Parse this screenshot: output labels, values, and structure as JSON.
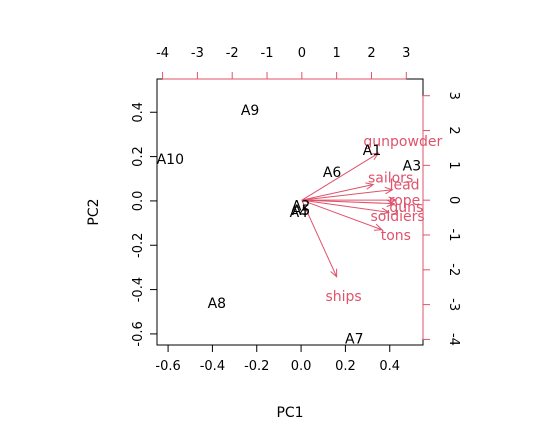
{
  "chart_data": {
    "type": "scatter",
    "title": "",
    "xlabel": "PC1",
    "ylabel": "PC2",
    "xlim": [
      -0.65,
      0.55
    ],
    "ylim": [
      -0.65,
      0.55
    ],
    "x_ticks": [
      -0.6,
      -0.4,
      -0.2,
      0.0,
      0.2,
      0.4
    ],
    "y_ticks": [
      -0.6,
      -0.4,
      -0.2,
      0.0,
      0.2,
      0.4
    ],
    "secondary_xlim": [
      -4.16,
      3.48
    ],
    "secondary_ylim": [
      -4.16,
      3.48
    ],
    "secondary_x_ticks": [
      -4,
      -3,
      -2,
      -1,
      0,
      1,
      2,
      3
    ],
    "secondary_y_ticks": [
      -4,
      -3,
      -2,
      -1,
      0,
      1,
      2,
      3
    ],
    "colors": {
      "observations": "#000000",
      "variables": "#DF536B"
    },
    "observations": [
      {
        "label": "A1",
        "x": 0.32,
        "y": 0.23
      },
      {
        "label": "A3",
        "x": 0.5,
        "y": 0.16
      },
      {
        "label": "A4",
        "x": -0.01,
        "y": -0.05
      },
      {
        "label": "A5",
        "x": 0.0,
        "y": -0.04
      },
      {
        "label": "A6",
        "x": 0.14,
        "y": 0.13
      },
      {
        "label": "A7",
        "x": 0.24,
        "y": -0.62
      },
      {
        "label": "A9",
        "x": -0.23,
        "y": 0.41
      },
      {
        "label": "A10",
        "x": -0.59,
        "y": 0.19
      },
      {
        "label": "A8",
        "x": -0.38,
        "y": -0.46
      },
      {
        "label": "A2",
        "x": 0.0,
        "y": -0.02
      }
    ],
    "variables": [
      {
        "label": "gunpowder",
        "x": 2.2,
        "y": 1.35,
        "label_x": 2.9,
        "label_y": 1.7
      },
      {
        "label": "sailors",
        "x": 2.05,
        "y": 0.45,
        "label_x": 2.55,
        "label_y": 0.65
      },
      {
        "label": "lead",
        "x": 2.6,
        "y": 0.3,
        "label_x": 2.95,
        "label_y": 0.45
      },
      {
        "label": "rope",
        "x": 2.7,
        "y": 0.0,
        "label_x": 2.95,
        "label_y": 0.0
      },
      {
        "label": "guns",
        "x": 2.65,
        "y": -0.1,
        "label_x": 3.0,
        "label_y": -0.2
      },
      {
        "label": "soldiers",
        "x": 2.5,
        "y": -0.35,
        "label_x": 2.75,
        "label_y": -0.45
      },
      {
        "label": "tons",
        "x": 2.3,
        "y": -0.85,
        "label_x": 2.7,
        "label_y": -1.0
      },
      {
        "label": "ships",
        "x": 1.0,
        "y": -2.2,
        "label_x": 1.2,
        "label_y": -2.75
      }
    ]
  }
}
